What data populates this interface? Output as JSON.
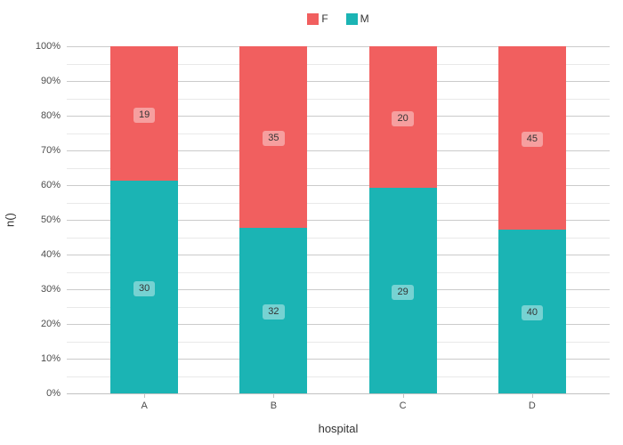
{
  "chart_data": {
    "type": "bar",
    "stacked": true,
    "normalized": "percent",
    "title": "",
    "xlabel": "hospital",
    "ylabel": "n()",
    "categories": [
      "A",
      "B",
      "C",
      "D"
    ],
    "series": [
      {
        "name": "F",
        "color": "#f15f5f",
        "values": [
          19,
          35,
          20,
          45
        ]
      },
      {
        "name": "M",
        "color": "#1bb4b4",
        "values": [
          30,
          32,
          29,
          40
        ]
      }
    ],
    "segment_percentages": {
      "M": [
        61.2,
        47.8,
        59.2,
        47.1
      ],
      "F": [
        38.8,
        52.2,
        40.8,
        52.9
      ]
    },
    "y_tick_labels": [
      "0%",
      "10%",
      "20%",
      "30%",
      "40%",
      "50%",
      "60%",
      "70%",
      "80%",
      "90%",
      "100%"
    ],
    "y_tick_values": [
      0,
      10,
      20,
      30,
      40,
      50,
      60,
      70,
      80,
      90,
      100
    ],
    "minor_grid_step": 5,
    "ylim": [
      0,
      100
    ],
    "legend_position": "top",
    "grid": "horizontal major+minor",
    "bar_value_labels_shown": true
  }
}
